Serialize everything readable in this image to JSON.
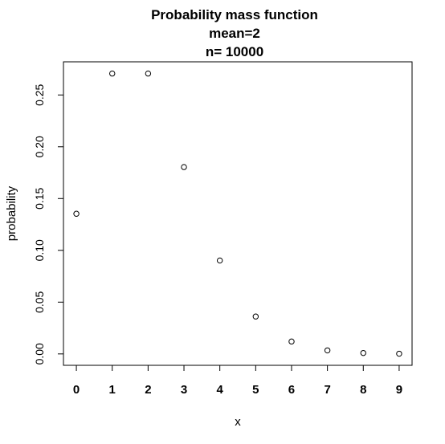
{
  "chart_data": {
    "type": "scatter",
    "title": [
      "Probability mass function",
      "mean=2",
      "n= 10000"
    ],
    "xlabel": "x",
    "ylabel": "probability",
    "x": [
      0,
      1,
      2,
      3,
      4,
      5,
      6,
      7,
      8,
      9
    ],
    "y": [
      0.1353,
      0.2707,
      0.2707,
      0.1804,
      0.0902,
      0.0361,
      0.012,
      0.0034,
      0.0009,
      0.0002
    ],
    "xlim": [
      -0.36,
      9.36
    ],
    "ylim": [
      -0.011,
      0.282
    ],
    "x_ticks": [
      "0",
      "1",
      "2",
      "3",
      "4",
      "5",
      "6",
      "7",
      "8",
      "9"
    ],
    "y_ticks": [
      "0.00",
      "0.05",
      "0.10",
      "0.15",
      "0.20",
      "0.25"
    ],
    "grid": false,
    "marker": "open-circle",
    "colors": {
      "points": "#000000",
      "axes": "#000000",
      "background": "#ffffff"
    }
  }
}
